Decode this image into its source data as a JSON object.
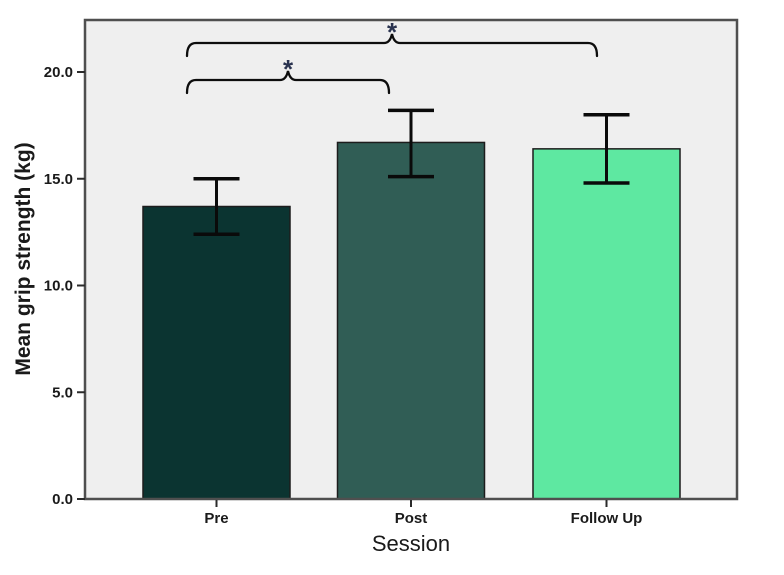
{
  "chart_data": {
    "type": "bar",
    "title": "",
    "categories": [
      "Pre",
      "Post",
      "Follow Up"
    ],
    "values": [
      13.7,
      16.7,
      16.4
    ],
    "error_upper": [
      15.0,
      18.2,
      18.0
    ],
    "error_lower": [
      12.4,
      15.1,
      14.8
    ],
    "bar_colors": [
      "#0b3431",
      "#305d55",
      "#5ee8a1"
    ],
    "xlabel": "Session",
    "ylabel": "Mean grip strength (kg)",
    "ylim": [
      0,
      22.4
    ],
    "yticks": [
      0,
      5,
      10,
      15,
      20
    ],
    "ytick_labels": [
      "0.0",
      "5.0",
      "10.0",
      "15.0",
      "20.0"
    ],
    "grid": false,
    "legend_position": "none",
    "plot_background": "#efefef",
    "page_background": "#ffffff",
    "frame_color": "#4f4f4f",
    "bar_border_color": "#1c1c1c",
    "error_bar_color": "#0a0a0a",
    "tick_color": "#2b2b2b",
    "text_color": "#1a1a1a",
    "significance_color": "#2a3350",
    "significance": [
      {
        "from": "Pre",
        "to": "Post",
        "label": "*"
      },
      {
        "from": "Pre",
        "to": "Follow Up",
        "label": "*"
      }
    ]
  }
}
